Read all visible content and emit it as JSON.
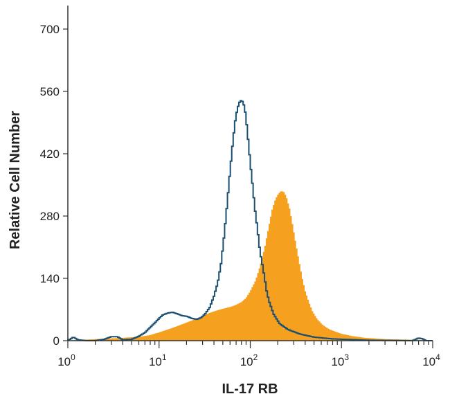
{
  "chart_data": {
    "type": "area",
    "xlabel": "IL-17 RB",
    "ylabel": "Relative Cell Number",
    "x_scale": "log",
    "xlim": [
      1,
      10000
    ],
    "ylim": [
      0,
      700
    ],
    "grid": false,
    "x_ticks": [
      {
        "value": 1,
        "base": "10",
        "exp": "0"
      },
      {
        "value": 10,
        "base": "10",
        "exp": "1"
      },
      {
        "value": 100,
        "base": "10",
        "exp": "2"
      },
      {
        "value": 1000,
        "base": "10",
        "exp": "3"
      },
      {
        "value": 10000,
        "base": "10",
        "exp": "4"
      }
    ],
    "y_ticks": [
      0,
      140,
      280,
      420,
      560,
      700
    ],
    "series": [
      {
        "style": "outline",
        "color": "#1b4f72",
        "points": [
          [
            1.0,
            0
          ],
          [
            1.15,
            8
          ],
          [
            1.3,
            2
          ],
          [
            1.6,
            0
          ],
          [
            2.0,
            0
          ],
          [
            2.5,
            3
          ],
          [
            3.0,
            9
          ],
          [
            3.5,
            9
          ],
          [
            4.0,
            2
          ],
          [
            5.0,
            3
          ],
          [
            6.0,
            10
          ],
          [
            7.0,
            18
          ],
          [
            8.0,
            30
          ],
          [
            9.0,
            40
          ],
          [
            10.0,
            50
          ],
          [
            11.0,
            58
          ],
          [
            12.5,
            62
          ],
          [
            14.0,
            64
          ],
          [
            16.0,
            60
          ],
          [
            18.0,
            56
          ],
          [
            20.0,
            55
          ],
          [
            23.0,
            50
          ],
          [
            26.0,
            48
          ],
          [
            29.0,
            52
          ],
          [
            32.0,
            60
          ],
          [
            36.0,
            75
          ],
          [
            40.0,
            100
          ],
          [
            44.0,
            130
          ],
          [
            48.0,
            175
          ],
          [
            52.0,
            240
          ],
          [
            56.0,
            310
          ],
          [
            60.0,
            380
          ],
          [
            64.0,
            440
          ],
          [
            68.0,
            490
          ],
          [
            72.0,
            520
          ],
          [
            76.0,
            535
          ],
          [
            80.0,
            540
          ],
          [
            84.0,
            535
          ],
          [
            88.0,
            515
          ],
          [
            92.0,
            480
          ],
          [
            96.0,
            440
          ],
          [
            100.0,
            400
          ],
          [
            106.0,
            350
          ],
          [
            112.0,
            300
          ],
          [
            120.0,
            250
          ],
          [
            128.0,
            200
          ],
          [
            136.0,
            170
          ],
          [
            144.0,
            140
          ],
          [
            150.0,
            115
          ],
          [
            160.0,
            90
          ],
          [
            180.0,
            60
          ],
          [
            210.0,
            38
          ],
          [
            260.0,
            25
          ],
          [
            350.0,
            15
          ],
          [
            500.0,
            8
          ],
          [
            800.0,
            4
          ],
          [
            2000.0,
            1
          ],
          [
            6000.0,
            0
          ],
          [
            7000.0,
            6
          ],
          [
            7800.0,
            4
          ],
          [
            8500.0,
            0
          ],
          [
            10000.0,
            0
          ]
        ]
      },
      {
        "style": "filled",
        "color": "#f5a01e",
        "points": [
          [
            1.0,
            0
          ],
          [
            2.0,
            3
          ],
          [
            4.0,
            6
          ],
          [
            6.0,
            8
          ],
          [
            8.0,
            12
          ],
          [
            10.0,
            18
          ],
          [
            14.0,
            28
          ],
          [
            20.0,
            40
          ],
          [
            28.0,
            52
          ],
          [
            36.0,
            62
          ],
          [
            44.0,
            68
          ],
          [
            52.0,
            72
          ],
          [
            60.0,
            75
          ],
          [
            70.0,
            80
          ],
          [
            80.0,
            86
          ],
          [
            90.0,
            95
          ],
          [
            100.0,
            110
          ],
          [
            115.0,
            135
          ],
          [
            130.0,
            170
          ],
          [
            145.0,
            210
          ],
          [
            160.0,
            255
          ],
          [
            175.0,
            295
          ],
          [
            190.0,
            318
          ],
          [
            205.0,
            330
          ],
          [
            220.0,
            336
          ],
          [
            235.0,
            333
          ],
          [
            250.0,
            320
          ],
          [
            270.0,
            295
          ],
          [
            290.0,
            260
          ],
          [
            310.0,
            225
          ],
          [
            340.0,
            180
          ],
          [
            370.0,
            140
          ],
          [
            400.0,
            110
          ],
          [
            440.0,
            85
          ],
          [
            480.0,
            65
          ],
          [
            540.0,
            48
          ],
          [
            620.0,
            35
          ],
          [
            720.0,
            26
          ],
          [
            850.0,
            20
          ],
          [
            1000.0,
            15
          ],
          [
            1300.0,
            10
          ],
          [
            1800.0,
            6
          ],
          [
            3000.0,
            3
          ],
          [
            5000.0,
            2
          ],
          [
            8000.0,
            1
          ],
          [
            10000.0,
            0
          ]
        ]
      }
    ]
  }
}
